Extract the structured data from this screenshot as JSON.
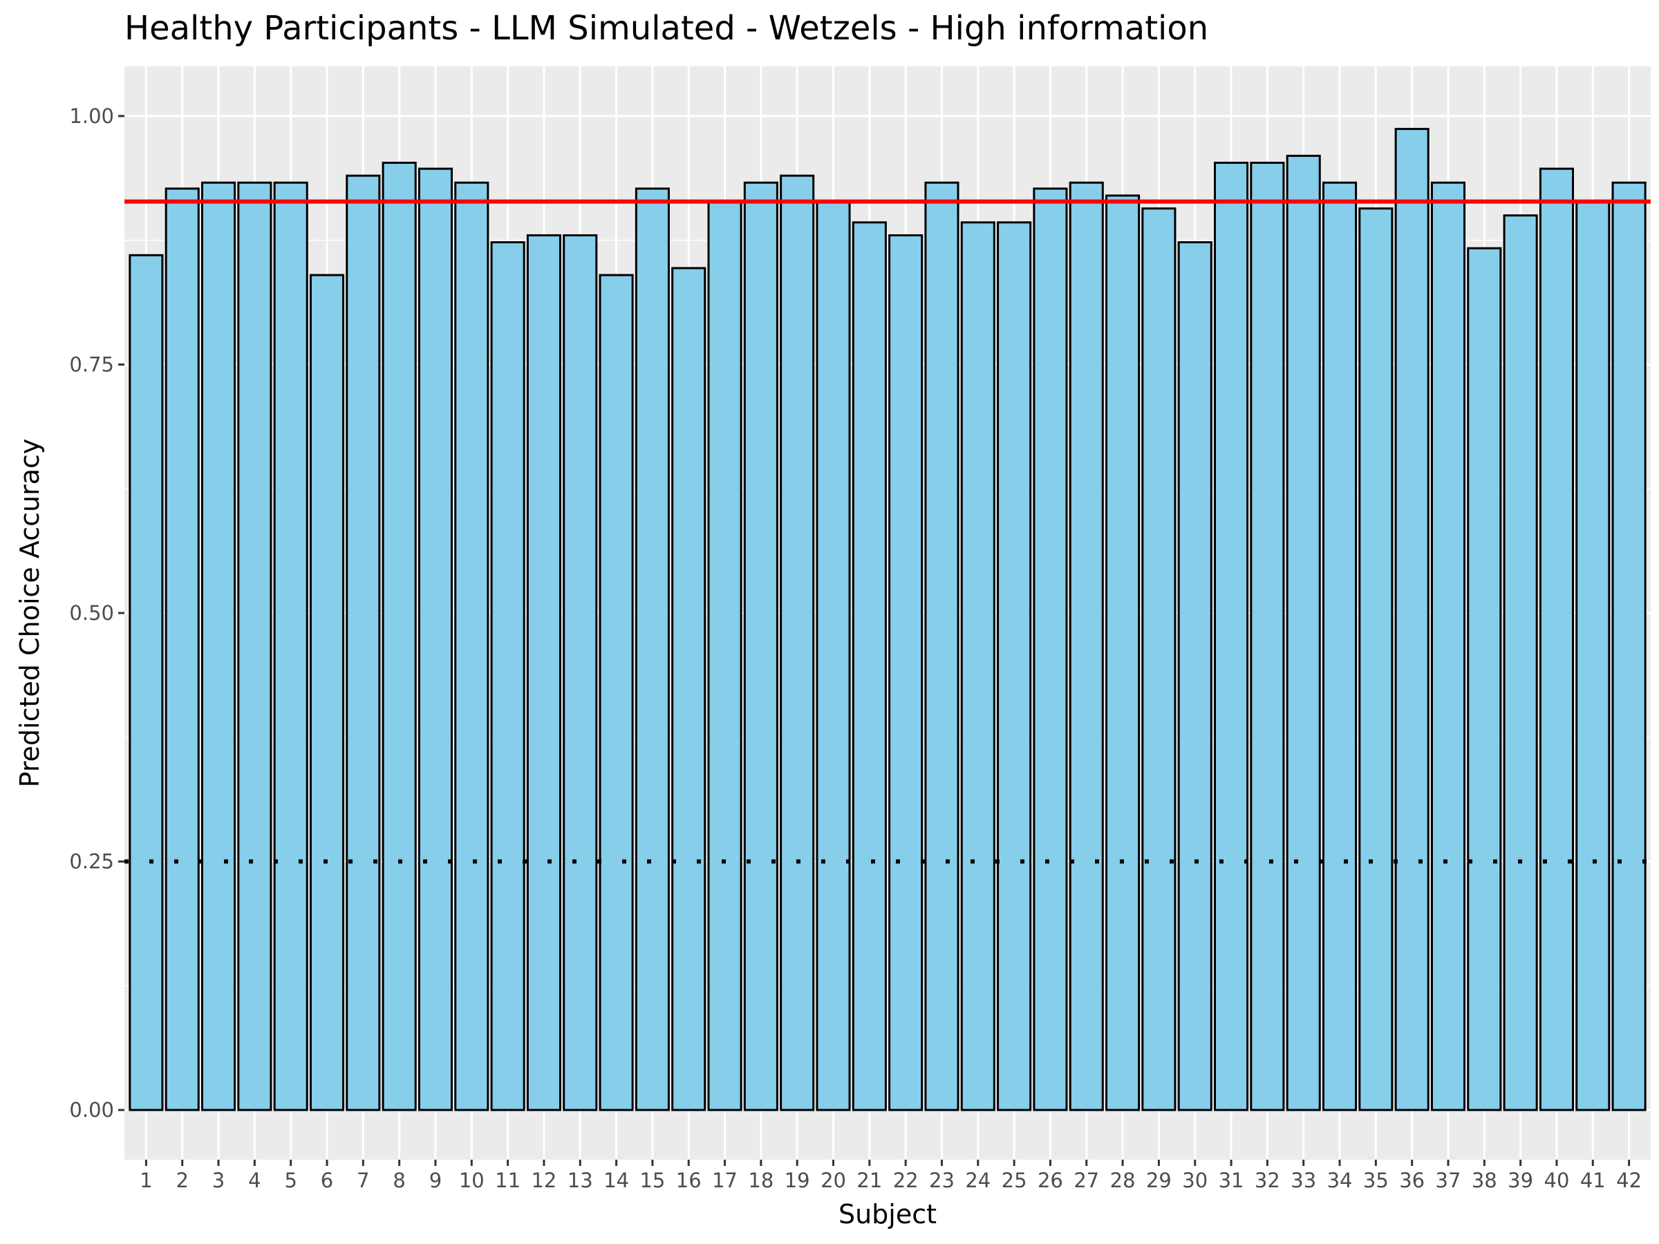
{
  "chart_data": {
    "type": "bar",
    "title": "Healthy Participants - LLM Simulated - Wetzels - High information",
    "xlabel": "Subject",
    "ylabel": "Predicted Choice Accuracy",
    "categories": [
      "1",
      "2",
      "3",
      "4",
      "5",
      "6",
      "7",
      "8",
      "9",
      "10",
      "11",
      "12",
      "13",
      "14",
      "15",
      "16",
      "17",
      "18",
      "19",
      "20",
      "21",
      "22",
      "23",
      "24",
      "25",
      "26",
      "27",
      "28",
      "29",
      "30",
      "31",
      "32",
      "33",
      "34",
      "35",
      "36",
      "37",
      "38",
      "39",
      "40",
      "41",
      "42"
    ],
    "values": [
      0.86,
      0.927,
      0.933,
      0.933,
      0.933,
      0.84,
      0.94,
      0.953,
      0.947,
      0.933,
      0.873,
      0.88,
      0.88,
      0.84,
      0.927,
      0.847,
      0.913,
      0.933,
      0.94,
      0.913,
      0.893,
      0.88,
      0.933,
      0.893,
      0.893,
      0.927,
      0.933,
      0.92,
      0.907,
      0.873,
      0.953,
      0.953,
      0.96,
      0.933,
      0.907,
      0.987,
      0.933,
      0.867,
      0.9,
      0.947,
      0.913,
      0.933
    ],
    "ylim": [
      -0.05,
      1.05
    ],
    "yticks": [
      "0.00",
      "0.25",
      "0.50",
      "0.75",
      "1.00"
    ],
    "mean_line": 0.914,
    "chance_line": 0.25,
    "grid": true,
    "colors": {
      "bar_fill": "#87CEEB",
      "bar_stroke": "#000000",
      "panel_bg": "#EBEBEB",
      "grid": "#FFFFFF",
      "mean_line": "#FF0000",
      "chance_line": "#000000"
    }
  }
}
